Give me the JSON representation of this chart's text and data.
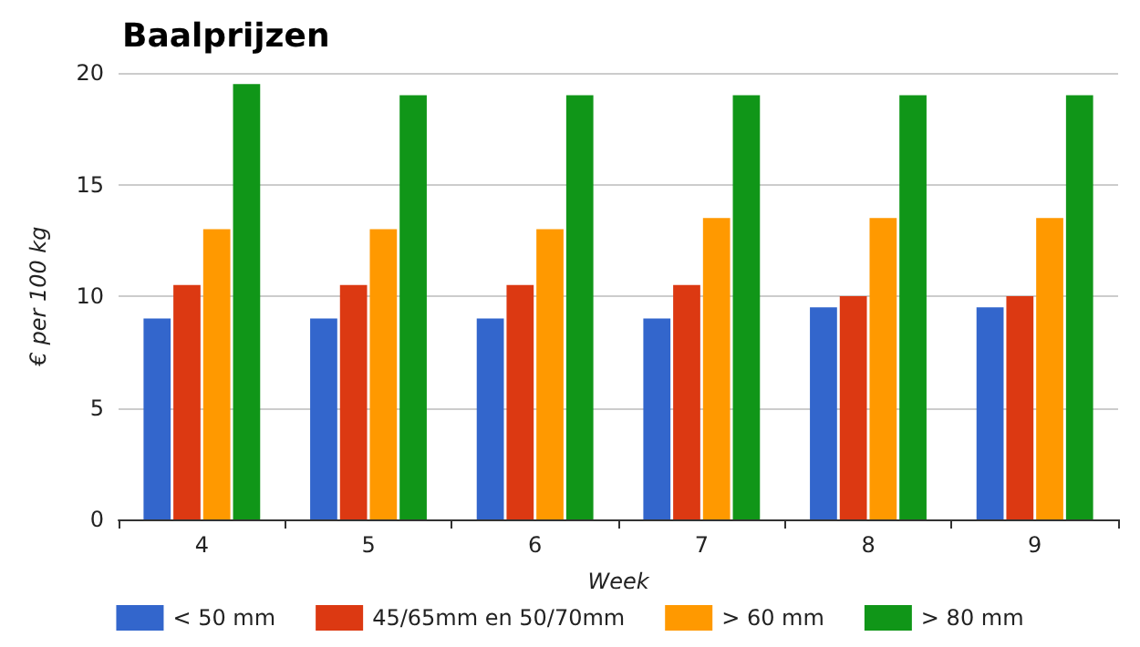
{
  "chart_data": {
    "type": "bar",
    "title": "Baalprijzen",
    "xlabel": "Week",
    "ylabel": "€ per 100 kg",
    "categories": [
      "4",
      "5",
      "6",
      "7",
      "8",
      "9"
    ],
    "series": [
      {
        "name": "< 50 mm",
        "color": "#3366cc",
        "values": [
          9,
          9,
          9,
          9,
          9.5,
          9.5
        ]
      },
      {
        "name": "45/65mm en 50/70mm",
        "color": "#dc3912",
        "values": [
          10.5,
          10.5,
          10.5,
          10.5,
          10,
          10
        ]
      },
      {
        "name": "> 60 mm",
        "color": "#ff9900",
        "values": [
          13,
          13,
          13,
          13.5,
          13.5,
          13.5
        ]
      },
      {
        "name": "> 80 mm",
        "color": "#109618",
        "values": [
          19.5,
          19,
          19,
          19,
          19,
          19
        ]
      }
    ],
    "ylim": [
      0,
      20
    ],
    "yticks": [
      0,
      5,
      10,
      15,
      20
    ],
    "grid": "y",
    "legend": "bottom"
  }
}
